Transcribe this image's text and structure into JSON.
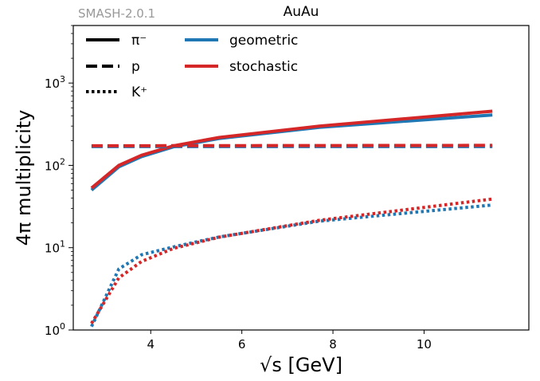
{
  "watermark": "SMASH-2.0.1",
  "chart_data": {
    "type": "line",
    "title": "AuAu",
    "xlabel": "√s [GeV]",
    "ylabel": "4π multiplicity",
    "yscale": "log",
    "xlim": [
      2.3,
      12.3
    ],
    "ylim": [
      1,
      5000
    ],
    "xticks": [
      4,
      6,
      8,
      10
    ],
    "yticks": [
      {
        "value": 1,
        "base": "10",
        "exp": "0"
      },
      {
        "value": 10,
        "base": "10",
        "exp": "1"
      },
      {
        "value": 100,
        "base": "10",
        "exp": "2"
      },
      {
        "value": 1000,
        "base": "10",
        "exp": "3"
      }
    ],
    "grid": false,
    "legend_placement": "top-left",
    "legend": {
      "styles": [
        {
          "label": "π⁻",
          "dash": "solid"
        },
        {
          "label": "p",
          "dash": "dashed"
        },
        {
          "label": "K⁺",
          "dash": "dotted"
        }
      ],
      "colors": [
        {
          "label": "geometric",
          "color": "#1f77b4"
        },
        {
          "label": "stochastic",
          "color": "#d62728"
        }
      ]
    },
    "series": [
      {
        "particle": "π⁻",
        "method": "geometric",
        "dash": "solid",
        "color": "#1f77b4",
        "x": [
          2.7,
          3.3,
          3.8,
          4.5,
          5.5,
          7.7,
          11.5
        ],
        "y": [
          50,
          96,
          128,
          168,
          212,
          290,
          410
        ]
      },
      {
        "particle": "π⁻",
        "method": "stochastic",
        "dash": "solid",
        "color": "#d62728",
        "x": [
          2.7,
          3.3,
          3.8,
          4.5,
          5.5,
          7.7,
          11.5
        ],
        "y": [
          53,
          100,
          133,
          173,
          218,
          300,
          455
        ]
      },
      {
        "particle": "p",
        "method": "geometric",
        "dash": "dashed",
        "color": "#1f77b4",
        "x": [
          2.7,
          11.5
        ],
        "y": [
          169,
          169
        ]
      },
      {
        "particle": "p",
        "method": "stochastic",
        "dash": "dashed",
        "color": "#d62728",
        "x": [
          2.7,
          11.5
        ],
        "y": [
          173,
          175
        ]
      },
      {
        "particle": "K⁺",
        "method": "geometric",
        "dash": "dotted",
        "color": "#1f77b4",
        "x": [
          2.7,
          3.3,
          3.8,
          4.5,
          5.5,
          7.7,
          11.5
        ],
        "y": [
          1.1,
          5.5,
          8.2,
          10.2,
          13.5,
          21,
          33
        ]
      },
      {
        "particle": "K⁺",
        "method": "stochastic",
        "dash": "dotted",
        "color": "#d62728",
        "x": [
          2.7,
          3.3,
          3.8,
          4.5,
          5.5,
          7.7,
          11.5
        ],
        "y": [
          1.2,
          4.3,
          6.8,
          9.8,
          13.4,
          21.5,
          39
        ]
      }
    ]
  }
}
